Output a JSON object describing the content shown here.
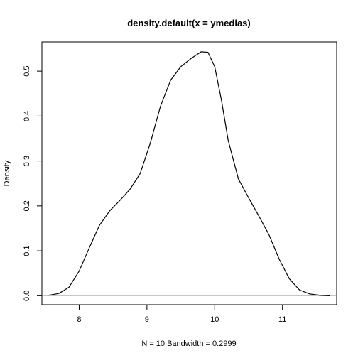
{
  "chart_data": {
    "type": "line",
    "title": "density.default(x = ymedias)",
    "xlabel": "N = 10   Bandwidth = 0.2999",
    "ylabel": "Density",
    "xlim": [
      7.45,
      11.8
    ],
    "ylim": [
      -0.02,
      0.565
    ],
    "x_ticks": [
      8,
      9,
      10,
      11
    ],
    "x_tick_labels": [
      "8",
      "9",
      "10",
      "11"
    ],
    "y_ticks": [
      0.0,
      0.1,
      0.2,
      0.3,
      0.4,
      0.5
    ],
    "y_tick_labels": [
      "0.0",
      "0.1",
      "0.2",
      "0.3",
      "0.4",
      "0.5"
    ],
    "grid": false,
    "baseline": {
      "y": 0,
      "color": "#bebebe"
    },
    "series": [
      {
        "color": "#000000",
        "x": [
          7.55,
          7.7,
          7.85,
          8.0,
          8.15,
          8.3,
          8.45,
          8.6,
          8.75,
          8.9,
          9.05,
          9.2,
          9.35,
          9.5,
          9.65,
          9.8,
          9.9,
          10.0,
          10.1,
          10.2,
          10.35,
          10.5,
          10.65,
          10.8,
          10.95,
          11.1,
          11.25,
          11.4,
          11.55,
          11.7
        ],
        "y": [
          0.001,
          0.005,
          0.019,
          0.055,
          0.107,
          0.157,
          0.189,
          0.212,
          0.237,
          0.272,
          0.34,
          0.422,
          0.48,
          0.51,
          0.528,
          0.543,
          0.542,
          0.51,
          0.435,
          0.345,
          0.26,
          0.218,
          0.178,
          0.136,
          0.082,
          0.038,
          0.013,
          0.004,
          0.001,
          0.0
        ]
      }
    ]
  }
}
